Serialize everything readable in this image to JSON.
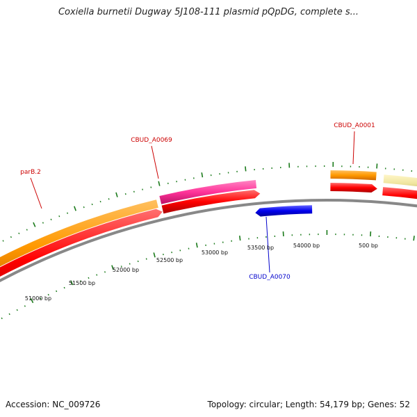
{
  "title": "Coxiella burnetii Dugway 5J108-111 plasmid pQpDG, complete s...",
  "footer": {
    "accession": "Accession: NC_009726",
    "summary": "Topology: circular; Length: 54,179 bp; Genes: 52"
  },
  "gene_labels": [
    {
      "text": "parB.2",
      "color": "#cc0000"
    },
    {
      "text": "CBUD_A0069",
      "color": "#cc0000"
    },
    {
      "text": "CBUD_A0001",
      "color": "#cc0000"
    },
    {
      "text": "CBUD_A0070",
      "color": "#0000cc"
    }
  ],
  "tick_labels": [
    "51000 bp",
    "51500 bp",
    "52000 bp",
    "52500 bp",
    "53000 bp",
    "53500 bp",
    "54000 bp",
    "500 bp"
  ],
  "colors": {
    "backbone": "#888888",
    "cds": "#ff0000",
    "gene_orange": "#ff9900",
    "gene_pink": "#ff3399",
    "gene_tan": "#f0e6a0",
    "gene_blue": "#0000ee",
    "tick": "#1a7a1a"
  }
}
